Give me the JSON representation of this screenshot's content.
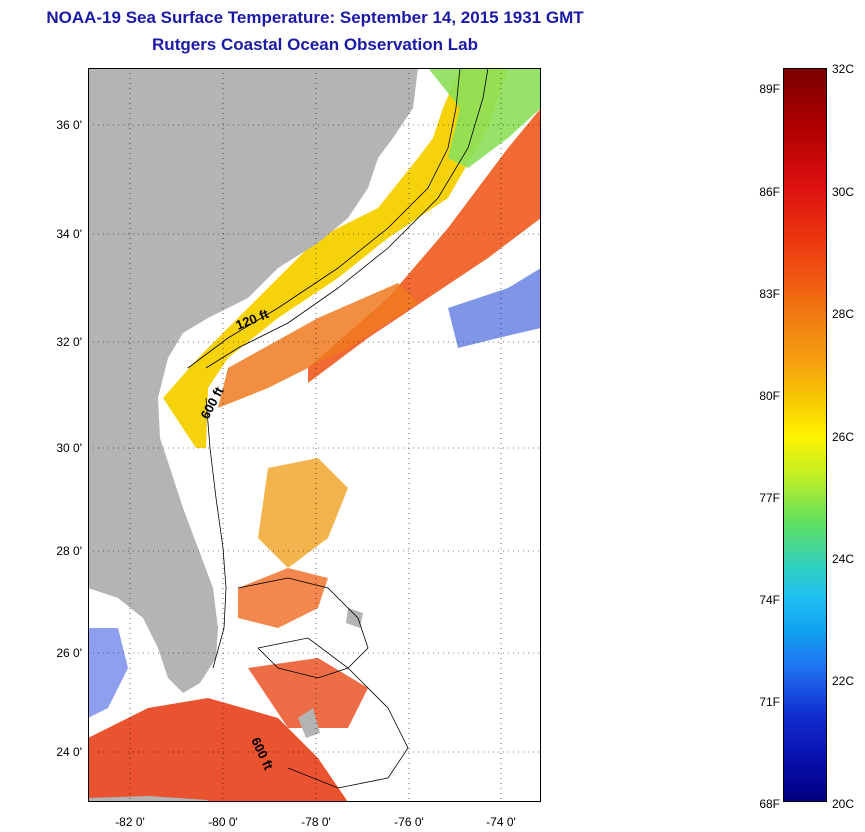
{
  "title": {
    "line1": "NOAA-19 Sea Surface Temperature:  September 14, 2015 1931 GMT",
    "line2": "Rutgers Coastal Ocean Observation Lab"
  },
  "latitude_labels": [
    "36 0'",
    "34 0'",
    "32 0'",
    "30 0'",
    "28 0'",
    "26 0'",
    "24 0'"
  ],
  "longitude_labels": [
    "-82 0'",
    "-80 0'",
    "-78 0'",
    "-76 0'",
    "-74 0'"
  ],
  "contour_labels": [
    "120 ft",
    "600 ft",
    "600 ft"
  ],
  "colorbar": {
    "fahrenheit": [
      "89F",
      "86F",
      "83F",
      "80F",
      "77F",
      "74F",
      "71F",
      "68F"
    ],
    "celsius": [
      "32C",
      "30C",
      "28C",
      "26C",
      "24C",
      "22C",
      "20C"
    ]
  },
  "colors": {
    "title": "#1a1aa6",
    "land": "#b4b4b4",
    "cloud": "#ffffff",
    "warm_stream": "#f05a1e",
    "shelf": "#f8d010"
  }
}
